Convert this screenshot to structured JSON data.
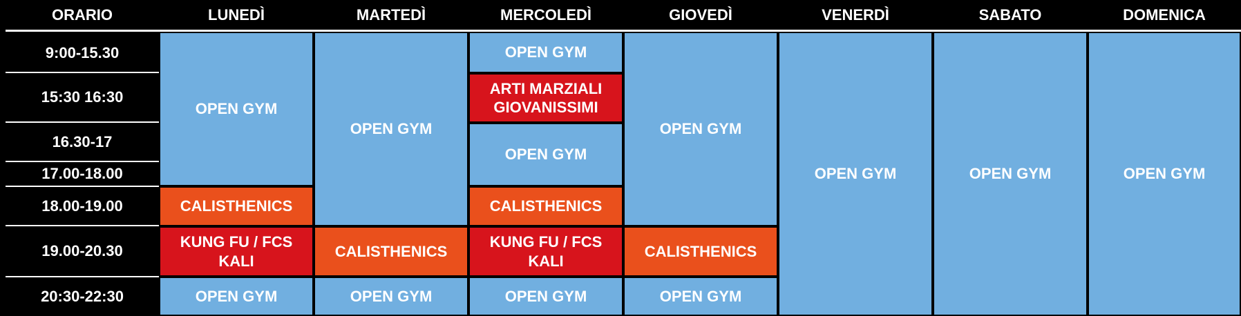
{
  "header": {
    "orario": "ORARIO",
    "days": [
      "LUNEDÌ",
      "MARTEDÌ",
      "MERCOLEDÌ",
      "GIOVEDÌ",
      "VENERDÌ",
      "SABATO",
      "DOMENICA"
    ]
  },
  "times": [
    "9:00-15.30",
    "15:30 16:30",
    "16.30-17",
    "17.00-18.00",
    "18.00-19.00",
    "19.00-20.30",
    "20:30-22:30"
  ],
  "events": {
    "mon_open_gym": "OPEN GYM",
    "mon_calisthenics": "CALISTHENICS",
    "mon_kungfu": "KUNG FU / FCS\nKALI",
    "mon_evening": "OPEN GYM",
    "tue_open_gym": "OPEN GYM",
    "tue_calisthenics": "CALISTHENICS",
    "tue_evening": "OPEN GYM",
    "wed_open_gym_1": "OPEN GYM",
    "wed_arti_marziali": "ARTI MARZIALI\nGIOVANISSIMI",
    "wed_open_gym_2": "OPEN GYM",
    "wed_calisthenics": "CALISTHENICS",
    "wed_kungfu": "KUNG FU / FCS\nKALI",
    "wed_evening": "OPEN GYM",
    "thu_open_gym": "OPEN GYM",
    "thu_calisthenics": "CALISTHENICS",
    "thu_evening": "OPEN GYM",
    "fri_open_gym": "OPEN GYM",
    "sat_open_gym": "OPEN GYM",
    "sun_open_gym": "OPEN GYM"
  },
  "colors": {
    "open_gym": "#71afe0",
    "calisthenics": "#ea501c",
    "martial_arts": "#d7141c",
    "background": "#000000"
  }
}
